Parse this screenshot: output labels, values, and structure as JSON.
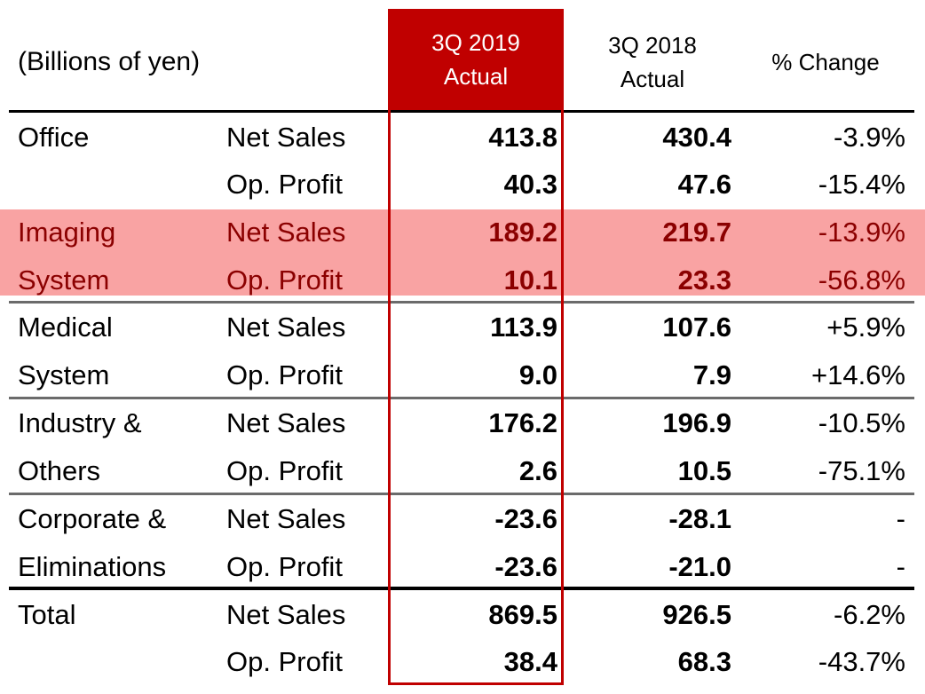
{
  "table": {
    "unit_label": "(Billions of yen)",
    "headers": {
      "current": [
        "3Q 2019",
        "Actual"
      ],
      "prior": [
        "3Q 2018",
        "Actual"
      ],
      "change": "% Change"
    },
    "rows": [
      {
        "segment": "Office",
        "metric": "Net Sales",
        "current": "413.8",
        "prior": "430.4",
        "change": "-3.9%"
      },
      {
        "segment": "",
        "metric": "Op. Profit",
        "current": "40.3",
        "prior": "47.6",
        "change": "-15.4%"
      },
      {
        "segment": "Imaging",
        "metric": "Net Sales",
        "current": "189.2",
        "prior": "219.7",
        "change": "-13.9%",
        "highlighted": true
      },
      {
        "segment": "System",
        "metric": "Op. Profit",
        "current": "10.1",
        "prior": "23.3",
        "change": "-56.8%",
        "highlighted": true
      },
      {
        "segment": "Medical",
        "metric": "Net Sales",
        "current": "113.9",
        "prior": "107.6",
        "change": "+5.9%"
      },
      {
        "segment": "System",
        "metric": "Op. Profit",
        "current": "9.0",
        "prior": "7.9",
        "change": "+14.6%"
      },
      {
        "segment": "Industry &",
        "metric": "Net Sales",
        "current": "176.2",
        "prior": "196.9",
        "change": "-10.5%"
      },
      {
        "segment": "Others",
        "metric": "Op. Profit",
        "current": "2.6",
        "prior": "10.5",
        "change": "-75.1%"
      },
      {
        "segment": "Corporate &",
        "metric": "Net Sales",
        "current": "-23.6",
        "prior": "-28.1",
        "change": "-"
      },
      {
        "segment": "Eliminations",
        "metric": "Op. Profit",
        "current": "-23.6",
        "prior": "-21.0",
        "change": "-"
      },
      {
        "segment": "Total",
        "metric": "Net Sales",
        "current": "869.5",
        "prior": "926.5",
        "change": "-6.2%"
      },
      {
        "segment": "",
        "metric": "Op. Profit",
        "current": "38.4",
        "prior": "68.3",
        "change": "-43.7%"
      }
    ]
  },
  "colors": {
    "accent_red": "#c00000",
    "highlight_row": "#f9a3a3",
    "highlight_text": "#8b0000"
  }
}
